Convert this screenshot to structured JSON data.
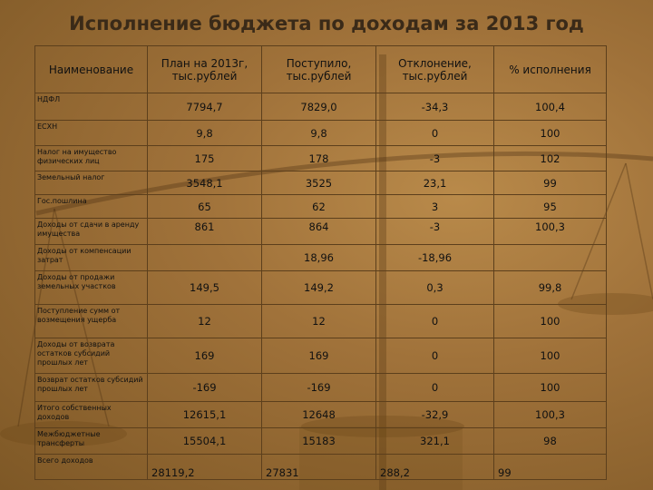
{
  "title": "Исполнение бюджета по доходам за 2013 год",
  "headers": [
    "Наименование",
    "План на 2013г, тыс.рублей",
    "Поступило, тыс.рублей",
    "Отклонение, тыс.рублей",
    "% исполнения"
  ],
  "rows": [
    {
      "name": "НДФЛ",
      "plan": "7794,7",
      "received": "7829,0",
      "deviation": "-34,3",
      "percent": "100,4"
    },
    {
      "name": "ЕСХН",
      "plan": "9,8",
      "received": "9,8",
      "deviation": "0",
      "percent": "100"
    },
    {
      "name": "Налог на имущество физических лиц",
      "plan": "175",
      "received": "178",
      "deviation": "-3",
      "percent": "102"
    },
    {
      "name": "Земельный налог",
      "plan": "3548,1",
      "received": "3525",
      "deviation": "23,1",
      "percent": "99"
    },
    {
      "name": "Гос.пошлина",
      "plan": "65",
      "received": "62",
      "deviation": "3",
      "percent": "95"
    },
    {
      "name": "Доходы от сдачи в аренду имущества",
      "plan": "861",
      "received": "864",
      "deviation": "-3",
      "percent": "100,3"
    },
    {
      "name": "Доходы от компенсации затрат",
      "plan": "",
      "received": "18,96",
      "deviation": "-18,96",
      "percent": ""
    },
    {
      "name": "Доходы от продажи земельных участков",
      "plan": "149,5",
      "received": "149,2",
      "deviation": "0,3",
      "percent": "99,8"
    },
    {
      "name": "Поступление сумм от возмещения ущерба",
      "plan": "12",
      "received": "12",
      "deviation": "0",
      "percent": "100"
    },
    {
      "name": "Доходы от возврата остатков субсидий прошлых лет",
      "plan": "169",
      "received": "169",
      "deviation": "0",
      "percent": "100"
    },
    {
      "name": "Возврат остатков субсидий прошлых лет",
      "plan": "-169",
      "received": "-169",
      "deviation": "0",
      "percent": "100"
    },
    {
      "name": "Итого собственных доходов",
      "plan": "12615,1",
      "received": "12648",
      "deviation": "-32,9",
      "percent": "100,3"
    },
    {
      "name": "Межбюджетные трансферты",
      "plan": "15504,1",
      "received": "15183",
      "deviation": "321,1",
      "percent": "98"
    },
    {
      "name": "Всего доходов",
      "plan": "28119,2",
      "received": "27831",
      "deviation": "288,2",
      "percent": "99"
    }
  ]
}
